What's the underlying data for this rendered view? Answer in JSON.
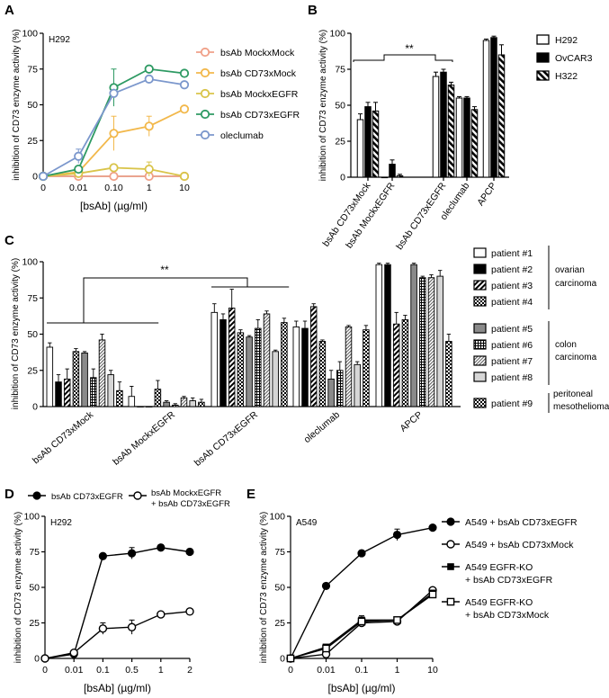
{
  "chart_data": [
    {
      "panel": "A",
      "type": "line",
      "title": "H292",
      "xlabel": "[bsAb] (µg/ml)",
      "ylabel": "inhibition of CD73 enzyme activity (%)",
      "categories": [
        "0",
        "0.01",
        "0.10",
        "1",
        "10"
      ],
      "yticks": [
        "0",
        "25",
        "50",
        "75",
        "100"
      ],
      "ylim": [
        0,
        100
      ],
      "legend_position": "right",
      "series": [
        {
          "name": "bsAb MockxMock",
          "color": "#F0A088",
          "values": [
            0,
            0,
            0,
            0,
            0
          ],
          "errors": [
            0,
            1,
            1,
            1,
            1
          ]
        },
        {
          "name": "bsAb CD73xMock",
          "color": "#F2B84B",
          "values": [
            0,
            3,
            30,
            35,
            47
          ],
          "errors": [
            0,
            3,
            12,
            7,
            1
          ]
        },
        {
          "name": "bsAb MockxEGFR",
          "color": "#D9C44A",
          "values": [
            0,
            2,
            6,
            5,
            0
          ],
          "errors": [
            0,
            2,
            2,
            5,
            2
          ]
        },
        {
          "name": "bsAb CD73xEGFR",
          "color": "#2E9A63",
          "values": [
            0,
            5,
            62,
            75,
            72
          ],
          "errors": [
            0,
            2,
            13,
            1,
            2
          ]
        },
        {
          "name": "oleclumab",
          "color": "#7B97CC",
          "values": [
            0,
            14,
            58,
            68,
            64
          ],
          "errors": [
            0,
            5,
            2,
            1,
            1
          ]
        }
      ]
    },
    {
      "panel": "B",
      "type": "bar",
      "ylabel": "inhibition of CD73 enzyme activity (%)",
      "categories": [
        "bsAb CD73xMock",
        "bsAb MockxEGFR",
        "bsAb CD73xEGFR",
        "oleclumab",
        "APCP"
      ],
      "yticks": [
        "0",
        "25",
        "50",
        "75",
        "100"
      ],
      "ylim": [
        0,
        100
      ],
      "legend_position": "right",
      "significance": "**",
      "series": [
        {
          "name": "H292",
          "fill": "white",
          "values": [
            40,
            0,
            70,
            55,
            95
          ],
          "errors": [
            4,
            0,
            3,
            1,
            1
          ]
        },
        {
          "name": "OvCAR3",
          "fill": "black",
          "values": [
            49,
            9,
            73,
            55,
            97
          ],
          "errors": [
            3,
            3,
            2,
            1,
            1
          ]
        },
        {
          "name": "H322",
          "fill": "hatch",
          "values": [
            46,
            1,
            64,
            47,
            85
          ],
          "errors": [
            6,
            1,
            2,
            2,
            7
          ]
        }
      ]
    },
    {
      "panel": "C",
      "type": "bar",
      "ylabel": "inhibition of CD73 enzyme activity (%)",
      "categories": [
        "bsAb CD73xMock",
        "bsAb MockxEGFR",
        "bsAb CD73xEGFR",
        "oleclumab",
        "APCP"
      ],
      "yticks": [
        "0",
        "25",
        "50",
        "75",
        "100"
      ],
      "ylim": [
        0,
        100
      ],
      "legend_position": "right",
      "significance": "**",
      "groups": [
        "ovarian carcinoma",
        "colon carcinoma",
        "peritoneal mesothelioma"
      ],
      "series": [
        {
          "name": "patient #1",
          "fill": "white",
          "group": 0,
          "values": [
            41,
            7,
            65,
            55,
            98
          ],
          "errors": [
            3,
            7,
            6,
            4,
            1
          ]
        },
        {
          "name": "patient #2",
          "fill": "black",
          "group": 0,
          "values": [
            17,
            0,
            60,
            54,
            98
          ],
          "errors": [
            5,
            0,
            4,
            5,
            1
          ]
        },
        {
          "name": "patient #3",
          "fill": "diag",
          "group": 0,
          "values": [
            19,
            0,
            68,
            69,
            57
          ],
          "errors": [
            7,
            0,
            13,
            2,
            8
          ]
        },
        {
          "name": "patient #4",
          "fill": "checker",
          "group": 0,
          "values": [
            38,
            12,
            51,
            45,
            60
          ],
          "errors": [
            2,
            6,
            2,
            1,
            3
          ]
        },
        {
          "name": "patient #5",
          "fill": "gray",
          "group": 1,
          "values": [
            37,
            3,
            48,
            19,
            98
          ],
          "errors": [
            1,
            1,
            1,
            6,
            1
          ]
        },
        {
          "name": "patient #6",
          "fill": "plus",
          "group": 1,
          "values": [
            20,
            1,
            54,
            25,
            89
          ],
          "errors": [
            6,
            1,
            6,
            6,
            1
          ]
        },
        {
          "name": "patient #7",
          "fill": "fine-diag",
          "group": 1,
          "values": [
            46,
            6,
            64,
            55,
            89
          ],
          "errors": [
            4,
            1,
            2,
            1,
            2
          ]
        },
        {
          "name": "patient #8",
          "fill": "light",
          "group": 1,
          "values": [
            22,
            4,
            38,
            29,
            90
          ],
          "errors": [
            3,
            2,
            1,
            2,
            4
          ]
        },
        {
          "name": "patient #9",
          "fill": "dots",
          "group": 2,
          "values": [
            11,
            3,
            58,
            53,
            45
          ],
          "errors": [
            6,
            2,
            3,
            3,
            5
          ]
        }
      ]
    },
    {
      "panel": "D",
      "type": "line",
      "title": "H292",
      "xlabel": "[bsAb] (µg/ml)",
      "ylabel": "inhibition of CD73 enzyme activity (%)",
      "categories": [
        "0",
        "0.01",
        "0.1",
        "0.5",
        "1",
        "2"
      ],
      "yticks": [
        "0",
        "25",
        "50",
        "75",
        "100"
      ],
      "ylim": [
        0,
        100
      ],
      "legend_position": "top",
      "series": [
        {
          "name": "bsAb CD73xEGFR",
          "marker": "filled-circle",
          "values": [
            0,
            3,
            72,
            74,
            78,
            75
          ],
          "errors": [
            0,
            1,
            1,
            4,
            2,
            2
          ]
        },
        {
          "name": "bsAb MockxEGFR + bsAb CD73xEGFR",
          "label_lines": [
            "bsAb MockxEGFR",
            "+ bsAb CD73xEGFR"
          ],
          "marker": "open-circle",
          "values": [
            0,
            4,
            21,
            22,
            31,
            33
          ],
          "errors": [
            0,
            1,
            4,
            5,
            1,
            1
          ]
        }
      ]
    },
    {
      "panel": "E",
      "type": "line",
      "title": "A549",
      "xlabel": "[bsAb] (µg/ml)",
      "ylabel": "inhibition of CD73 enzyme activity (%)",
      "categories": [
        "0",
        "0.01",
        "0.1",
        "1",
        "10"
      ],
      "yticks": [
        "0",
        "25",
        "50",
        "75",
        "100"
      ],
      "ylim": [
        0,
        100
      ],
      "legend_position": "right",
      "series": [
        {
          "name": "A549 + bsAb CD73xEGFR",
          "label_lines": [
            "A549 + bsAb CD73xEGFR"
          ],
          "marker": "filled-circle",
          "values": [
            0,
            51,
            74,
            87,
            92
          ],
          "errors": [
            0,
            1,
            2,
            4,
            2
          ]
        },
        {
          "name": "A549 + bsAb CD73xMock",
          "label_lines": [
            "A549 + bsAb CD73xMock"
          ],
          "marker": "open-circle",
          "values": [
            0,
            3,
            25,
            26,
            48
          ],
          "errors": [
            0,
            1,
            2,
            2,
            1
          ]
        },
        {
          "name": "A549 EGFR-KO + bsAb CD73xEGFR",
          "label_lines": [
            "A549 EGFR-KO",
            "+ bsAb CD73xEGFR"
          ],
          "marker": "filled-square",
          "values": [
            0,
            8,
            27,
            27,
            46
          ],
          "errors": [
            0,
            1,
            3,
            2,
            1
          ]
        },
        {
          "name": "A549 EGFR-KO + bsAb CD73xMock",
          "label_lines": [
            "A549 EGFR-KO",
            "+ bsAb CD73xMock"
          ],
          "marker": "open-square",
          "values": [
            0,
            7,
            26,
            27,
            45
          ],
          "errors": [
            0,
            1,
            2,
            2,
            1
          ]
        }
      ]
    }
  ]
}
